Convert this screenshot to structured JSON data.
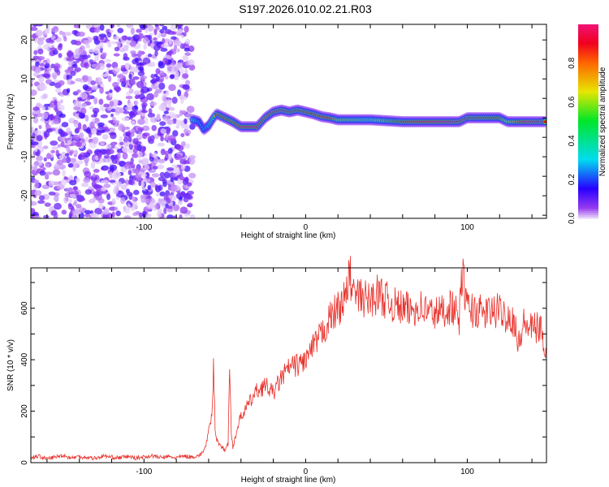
{
  "chart_data": [
    {
      "type": "heatmap",
      "title": "S197.2026.010.02.21.R03",
      "xlabel": "Height of straight line (km)",
      "ylabel": "Frequency (Hz)",
      "xlim": [
        -170,
        149
      ],
      "ylim": [
        -25.8,
        24
      ],
      "xticks": [
        -100,
        0,
        100
      ],
      "yticks": [
        -20,
        -10,
        0,
        10,
        20
      ],
      "colorbar": {
        "label": "Normalized spectral amplitude",
        "ticks": [
          "0.0",
          "0.2",
          "0.4",
          "0.6",
          "0.8"
        ],
        "range": [
          0,
          1
        ]
      },
      "noise_region_x": [
        -170,
        -70
      ],
      "ridge": {
        "x": [
          -70,
          -66,
          -63,
          -60,
          -57,
          -55,
          -50,
          -45,
          -40,
          -35,
          -30,
          -25,
          -20,
          -15,
          -10,
          -5,
          0,
          5,
          10,
          15,
          20,
          40,
          60,
          80,
          95,
          100,
          110,
          120,
          125,
          135,
          149
        ],
        "freq": [
          -0.5,
          -1,
          -3,
          -2,
          0,
          1,
          0,
          -1,
          -2.3,
          -2.3,
          -2.3,
          0,
          1.5,
          2,
          1.5,
          2,
          1.5,
          1,
          0.3,
          0,
          -0.5,
          -0.5,
          -1,
          -1,
          -1,
          0,
          0,
          0,
          -1,
          -1,
          -1
        ],
        "amplitude": [
          0.6,
          0.3,
          0.3,
          0.4,
          0.5,
          0.9,
          0.9,
          0.8,
          0.9,
          0.9,
          0.9,
          0.8,
          0.9,
          0.9,
          0.9,
          0.9,
          0.9,
          0.9,
          0.9,
          0.9,
          0.6,
          0.55,
          0.9,
          0.9,
          0.9,
          0.9,
          0.9,
          0.85,
          0.6,
          0.9,
          0.9
        ]
      }
    },
    {
      "type": "line",
      "xlabel": "Height of straight line (km)",
      "ylabel": "SNR (10 * v/v)",
      "xlim": [
        -170,
        149
      ],
      "ylim": [
        0,
        757
      ],
      "xticks": [
        -100,
        0,
        100
      ],
      "yticks": [
        0,
        200,
        400,
        600
      ],
      "color": "#e8302a",
      "x": [
        -170,
        -165,
        -160,
        -155,
        -150,
        -145,
        -140,
        -135,
        -130,
        -125,
        -120,
        -115,
        -110,
        -105,
        -100,
        -95,
        -90,
        -85,
        -80,
        -75,
        -70,
        -65,
        -62,
        -60,
        -58,
        -57,
        -56,
        -55,
        -52,
        -50,
        -48,
        -47,
        -46,
        -45,
        -42,
        -40,
        -35,
        -30,
        -25,
        -20,
        -15,
        -10,
        -5,
        0,
        5,
        10,
        15,
        20,
        25,
        27,
        30,
        35,
        40,
        45,
        50,
        55,
        60,
        65,
        70,
        75,
        80,
        85,
        90,
        95,
        97,
        100,
        105,
        110,
        115,
        120,
        125,
        130,
        131,
        135,
        140,
        145,
        149
      ],
      "values": [
        20,
        25,
        15,
        22,
        28,
        18,
        24,
        20,
        17,
        26,
        21,
        19,
        24,
        18,
        22,
        27,
        20,
        23,
        19,
        25,
        22,
        30,
        60,
        120,
        180,
        370,
        140,
        90,
        60,
        50,
        70,
        390,
        110,
        60,
        140,
        180,
        230,
        280,
        300,
        270,
        330,
        370,
        380,
        400,
        450,
        500,
        560,
        600,
        640,
        740,
        650,
        640,
        630,
        660,
        630,
        610,
        600,
        590,
        610,
        590,
        580,
        590,
        610,
        560,
        740,
        600,
        590,
        580,
        585,
        590,
        570,
        545,
        440,
        540,
        520,
        525,
        430
      ]
    }
  ]
}
